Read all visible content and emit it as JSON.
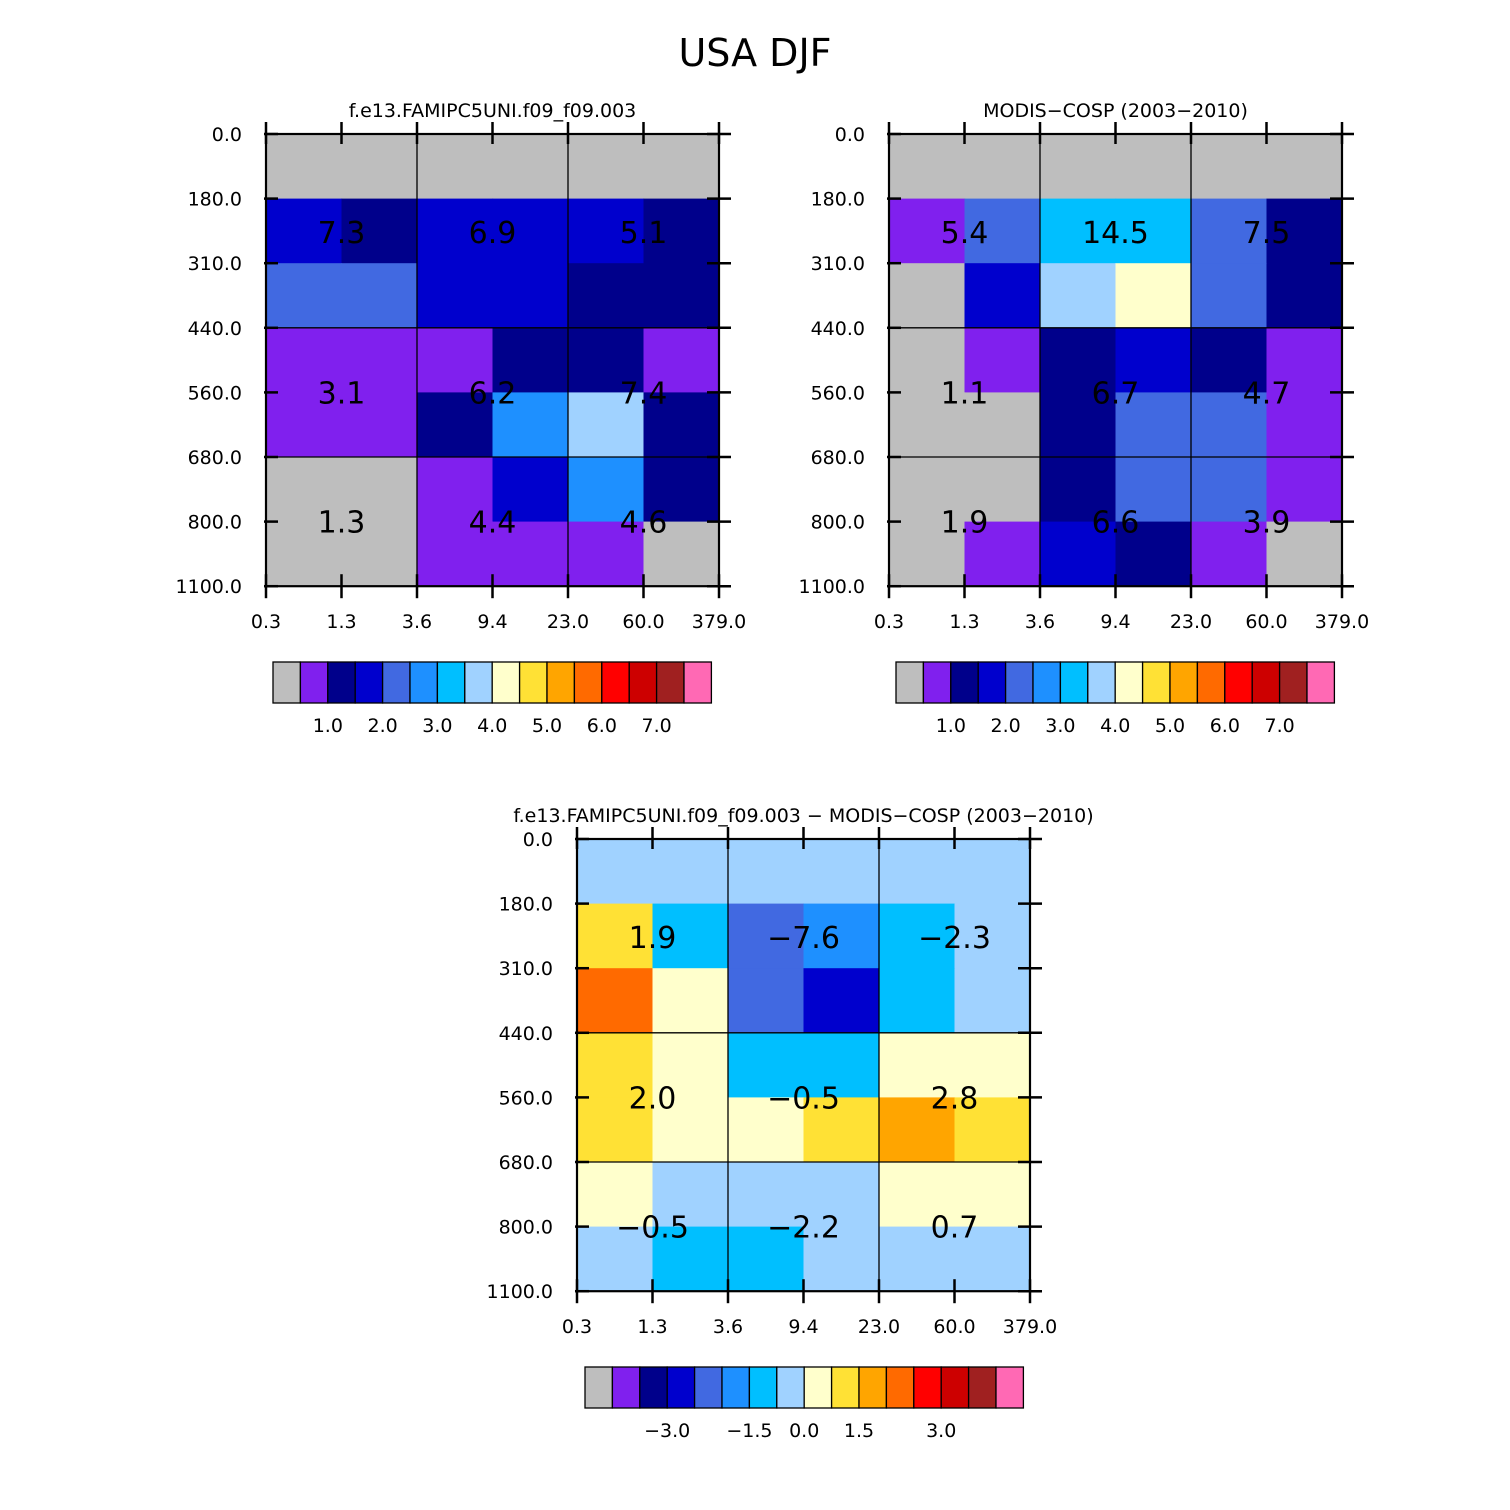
{
  "title": "USA DJF",
  "chart_data": [
    {
      "type": "heatmap",
      "title": "f.e13.FAMIPC5UNI.f09_f09.003",
      "xticks": [
        "0.3",
        "1.3",
        "3.6",
        "9.4",
        "23.0",
        "60.0",
        "379.0"
      ],
      "yticks": [
        "0.0",
        "180.0",
        "310.0",
        "440.0",
        "560.0",
        "680.0",
        "800.0",
        "1100.0"
      ],
      "cell_bins": [
        [
          0,
          0,
          0,
          0,
          0,
          0
        ],
        [
          3,
          2,
          3,
          3,
          3,
          2
        ],
        [
          4,
          4,
          3,
          3,
          2,
          2
        ],
        [
          1,
          1,
          1,
          2,
          2,
          1
        ],
        [
          1,
          1,
          2,
          5,
          7,
          2
        ],
        [
          0,
          0,
          1,
          3,
          5,
          2
        ],
        [
          0,
          0,
          1,
          1,
          1,
          0
        ]
      ],
      "group_labels": [
        [
          "7.3",
          "6.9",
          "5.1"
        ],
        [
          "3.1",
          "6.2",
          "7.4"
        ],
        [
          "1.3",
          "4.4",
          "4.6"
        ]
      ],
      "colorbar": {
        "colors": [
          "#bebebe",
          "#8020ee",
          "#00008b",
          "#0000cd",
          "#4169e1",
          "#1e90ff",
          "#00bfff",
          "#a0d2ff",
          "#ffffcc",
          "#ffe135",
          "#ffa500",
          "#ff6a00",
          "#ff0000",
          "#cd0000",
          "#a02020",
          "#ff69b4"
        ],
        "labels": [
          "1.0",
          "2.0",
          "3.0",
          "4.0",
          "5.0",
          "6.0",
          "7.0"
        ],
        "label_bounds": [
          2,
          4,
          6,
          8,
          10,
          12,
          14
        ]
      }
    },
    {
      "type": "heatmap",
      "title": "MODIS-COSP (2003-2010)",
      "xticks": [
        "0.3",
        "1.3",
        "3.6",
        "9.4",
        "23.0",
        "60.0",
        "379.0"
      ],
      "yticks": [
        "0.0",
        "180.0",
        "310.0",
        "440.0",
        "560.0",
        "680.0",
        "800.0",
        "1100.0"
      ],
      "cell_bins": [
        [
          0,
          0,
          0,
          0,
          0,
          0
        ],
        [
          1,
          4,
          6,
          6,
          4,
          2
        ],
        [
          0,
          3,
          7,
          8,
          4,
          2
        ],
        [
          0,
          1,
          2,
          3,
          2,
          1
        ],
        [
          0,
          0,
          2,
          4,
          4,
          1
        ],
        [
          0,
          0,
          2,
          4,
          4,
          1
        ],
        [
          0,
          1,
          3,
          2,
          1,
          0
        ]
      ],
      "group_labels": [
        [
          "5.4",
          "14.5",
          "7.5"
        ],
        [
          "1.1",
          "6.7",
          "4.7"
        ],
        [
          "1.9",
          "6.6",
          "3.9"
        ]
      ],
      "colorbar": {
        "colors": [
          "#bebebe",
          "#8020ee",
          "#00008b",
          "#0000cd",
          "#4169e1",
          "#1e90ff",
          "#00bfff",
          "#a0d2ff",
          "#ffffcc",
          "#ffe135",
          "#ffa500",
          "#ff6a00",
          "#ff0000",
          "#cd0000",
          "#a02020",
          "#ff69b4"
        ],
        "labels": [
          "1.0",
          "2.0",
          "3.0",
          "4.0",
          "5.0",
          "6.0",
          "7.0"
        ],
        "label_bounds": [
          2,
          4,
          6,
          8,
          10,
          12,
          14
        ]
      }
    },
    {
      "type": "heatmap",
      "title": "f.e13.FAMIPC5UNI.f09_f09.003 - MODIS-COSP (2003-2010)",
      "xticks": [
        "0.3",
        "1.3",
        "3.6",
        "9.4",
        "23.0",
        "60.0",
        "379.0"
      ],
      "yticks": [
        "0.0",
        "180.0",
        "310.0",
        "440.0",
        "560.0",
        "680.0",
        "800.0",
        "1100.0"
      ],
      "cell_bins": [
        [
          7,
          7,
          7,
          7,
          7,
          7
        ],
        [
          9,
          6,
          4,
          5,
          6,
          7
        ],
        [
          11,
          8,
          4,
          3,
          6,
          7
        ],
        [
          9,
          8,
          6,
          6,
          8,
          8
        ],
        [
          9,
          8,
          8,
          9,
          10,
          9
        ],
        [
          8,
          7,
          7,
          7,
          8,
          8
        ],
        [
          7,
          6,
          6,
          7,
          7,
          7
        ]
      ],
      "group_labels": [
        [
          "1.9",
          "-7.6",
          "-2.3"
        ],
        [
          "2.0",
          "-0.5",
          "2.8"
        ],
        [
          "-0.5",
          "-2.2",
          "0.7"
        ]
      ],
      "colorbar": {
        "colors": [
          "#bebebe",
          "#8020ee",
          "#00008b",
          "#0000cd",
          "#4169e1",
          "#1e90ff",
          "#00bfff",
          "#a0d2ff",
          "#ffffcc",
          "#ffe135",
          "#ffa500",
          "#ff6a00",
          "#ff0000",
          "#cd0000",
          "#a02020",
          "#ff69b4"
        ],
        "labels": [
          "-3.0",
          "-1.5",
          "0.0",
          "1.5",
          "3.0"
        ],
        "label_bounds": [
          3,
          6,
          8,
          10,
          13
        ]
      }
    }
  ]
}
